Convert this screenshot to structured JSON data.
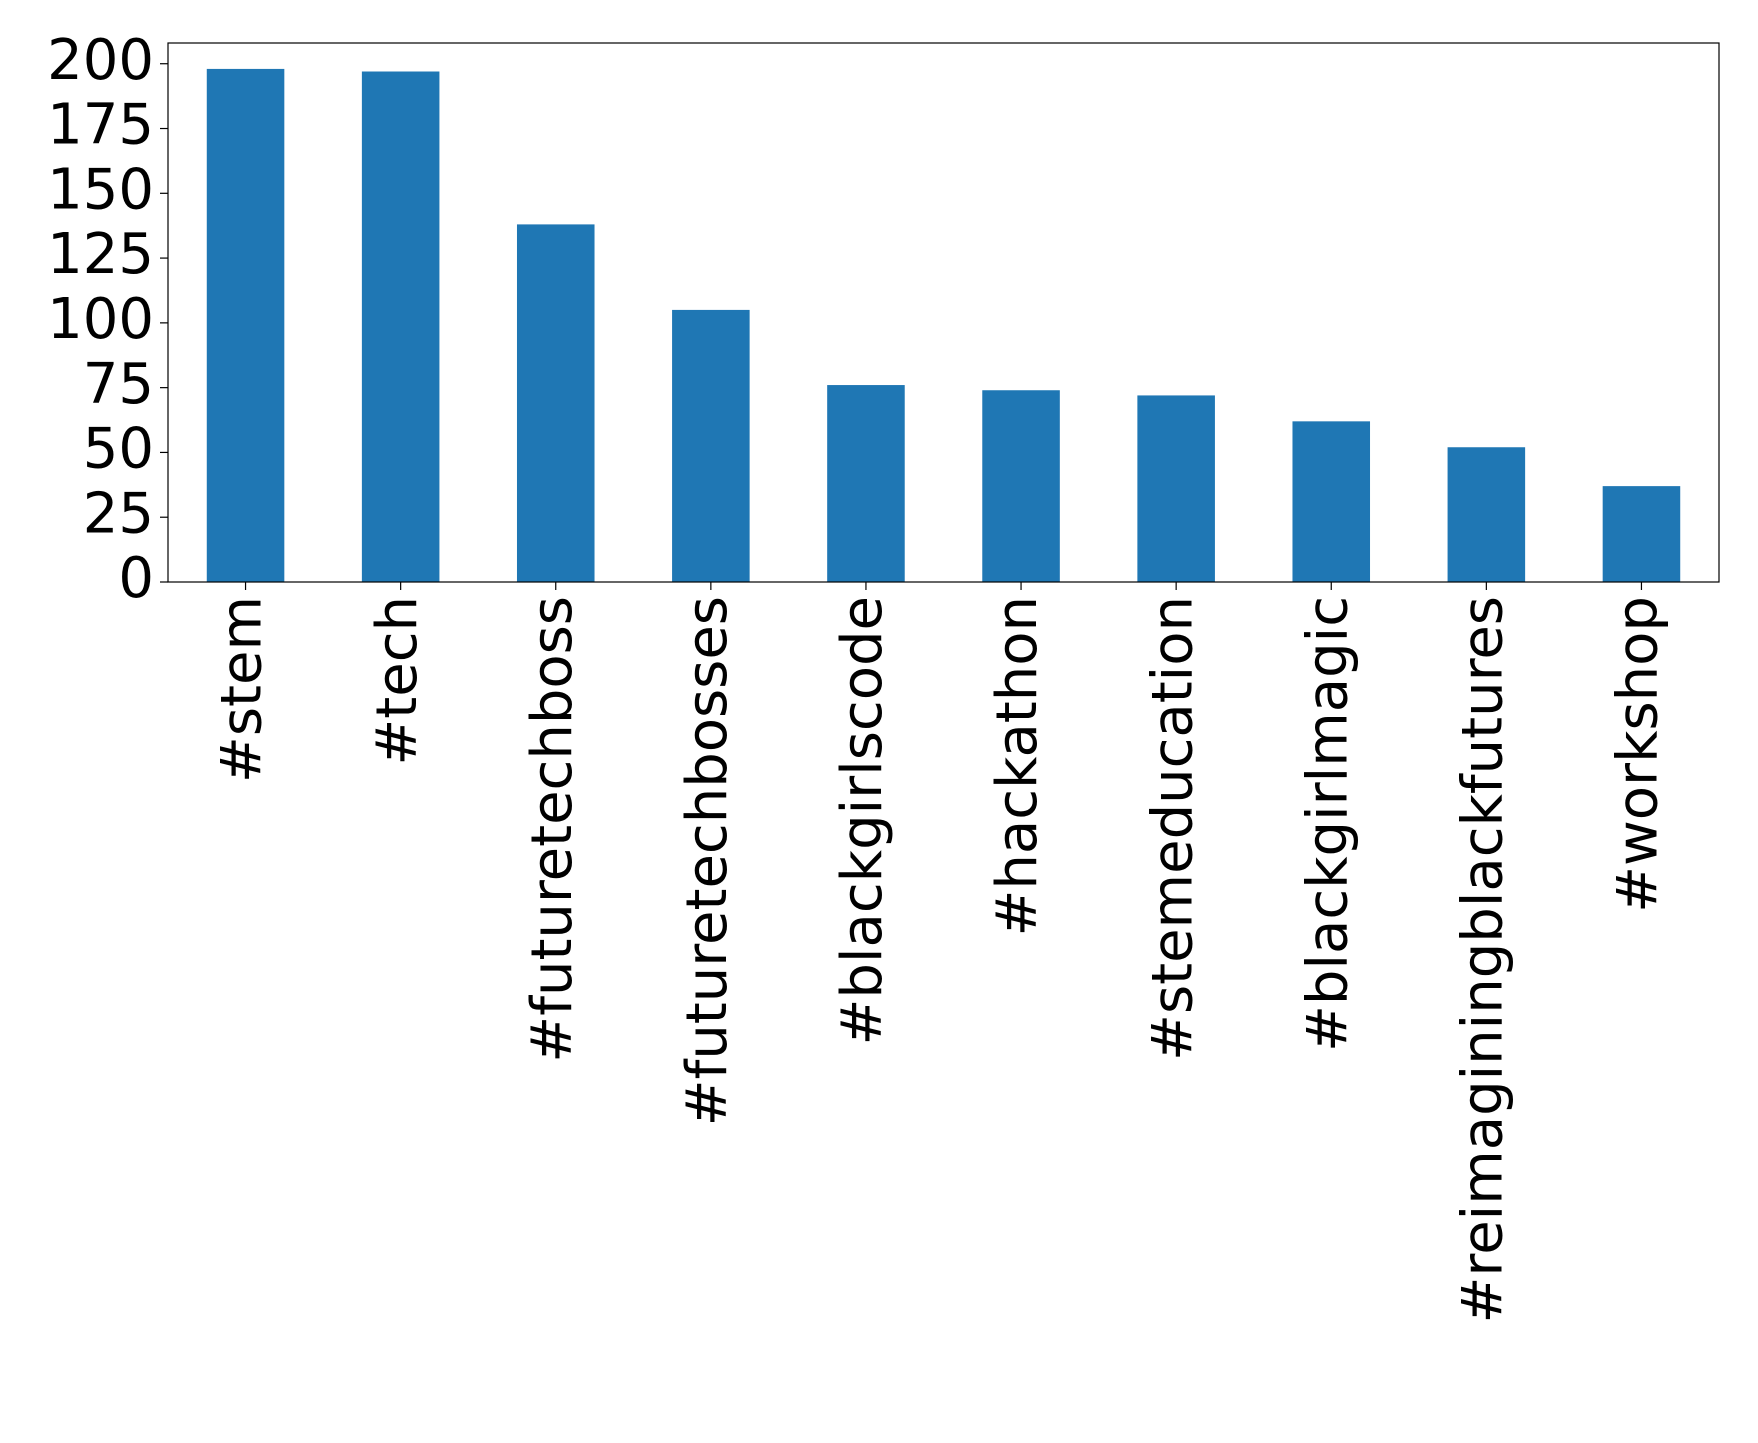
{
  "chart_data": {
    "type": "bar",
    "categories": [
      "#stem",
      "#tech",
      "#futuretechboss",
      "#futuretechbosses",
      "#blackgirlscode",
      "#hackathon",
      "#stemeducation",
      "#blackgirlmagic",
      "#reimaginingblackfutures",
      "#workshop"
    ],
    "values": [
      198,
      197,
      138,
      105,
      76,
      74,
      72,
      62,
      52,
      37
    ],
    "color": "#1f77b4",
    "ylim": [
      0,
      208
    ],
    "yticks": [
      0,
      25,
      50,
      75,
      100,
      125,
      150,
      175,
      200
    ],
    "grid": false
  }
}
